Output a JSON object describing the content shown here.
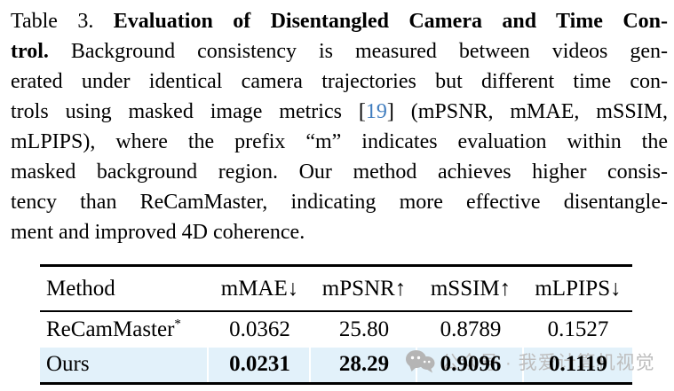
{
  "caption": {
    "lines": [
      {
        "parts": [
          {
            "t": "Table 3.",
            "b": false
          },
          {
            "t": "  ",
            "b": false
          },
          {
            "t": "Evaluation of Disentangled Camera and Time Con-",
            "b": true
          }
        ]
      },
      {
        "parts": [
          {
            "t": "trol.",
            "b": true
          },
          {
            "t": "  Background consistency is measured between videos gen-",
            "b": false
          }
        ]
      },
      {
        "parts": [
          {
            "t": "erated under identical camera trajectories but different time con-"
          }
        ]
      },
      {
        "parts": [
          {
            "t": "trols using masked image metrics ["
          },
          {
            "t": "19",
            "cite": true
          },
          {
            "t": "] (mPSNR, mMAE, mSSIM,"
          }
        ]
      },
      {
        "parts": [
          {
            "t": "mLPIPS), where the prefix “m” indicates evaluation within the"
          }
        ]
      },
      {
        "parts": [
          {
            "t": "masked background region.  Our method achieves higher consis-"
          }
        ]
      },
      {
        "parts": [
          {
            "t": "tency than ReCamMaster, indicating more effective disentangle-"
          }
        ]
      },
      {
        "parts": [
          {
            "t": "ment and improved 4D coherence."
          }
        ]
      }
    ]
  },
  "table": {
    "headers": [
      "Method",
      "mMAE↓",
      "mPSNR↑",
      "mSSIM↑",
      "mLPIPS↓"
    ],
    "rows": [
      {
        "method": "ReCamMaster",
        "sup": "*",
        "values": [
          "0.0362",
          "25.80",
          "0.8789",
          "0.1527"
        ],
        "bold": false,
        "highlight": false
      },
      {
        "method": "Ours",
        "sup": "",
        "values": [
          "0.0231",
          "28.29",
          "0.9096",
          "0.1119"
        ],
        "bold": true,
        "highlight": true
      }
    ],
    "highlight_color": "#e2f1fa"
  },
  "watermark": {
    "icon": "chat-bubbles-icon",
    "text": "公众号 · 我爱计算机视觉",
    "color": "#bdbdbd"
  },
  "colors": {
    "citation_blue": "#3f7cbe",
    "text": "#000000",
    "rule": "#000000"
  }
}
